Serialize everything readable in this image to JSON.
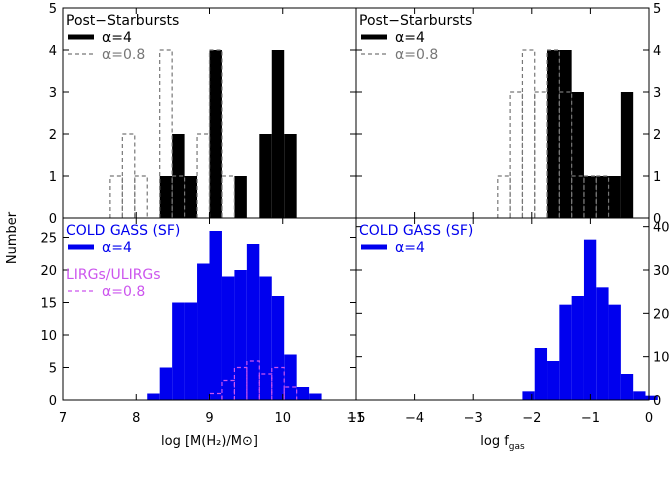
{
  "figure": {
    "y_axis_label": "Number"
  },
  "chart_data": [
    {
      "id": "top-left",
      "type": "bar",
      "xlim": [
        7,
        11
      ],
      "ylim": [
        0,
        5
      ],
      "yticks": [
        0,
        1,
        2,
        3,
        4,
        5
      ],
      "grid": false,
      "legend_title": "Post−Starbursts",
      "legend_title_color": "#000000",
      "legend_placement": "top-left",
      "series": [
        {
          "name": "α=4",
          "style": "solid-fill",
          "color": "#000000",
          "bin_width": 0.17,
          "bins": [
            {
              "x0": 8.32,
              "count": 1
            },
            {
              "x0": 8.49,
              "count": 2
            },
            {
              "x0": 8.66,
              "count": 1
            },
            {
              "x0": 9.0,
              "count": 4
            },
            {
              "x0": 9.34,
              "count": 1
            },
            {
              "x0": 9.68,
              "count": 2
            },
            {
              "x0": 9.85,
              "count": 4
            },
            {
              "x0": 10.02,
              "count": 2
            }
          ]
        },
        {
          "name": "α=0.8",
          "style": "dashed-step",
          "color": "#777777",
          "bin_width": 0.17,
          "bins": [
            {
              "x0": 7.64,
              "count": 1
            },
            {
              "x0": 7.81,
              "count": 2
            },
            {
              "x0": 7.98,
              "count": 1
            },
            {
              "x0": 8.32,
              "count": 4
            },
            {
              "x0": 8.49,
              "count": 1
            },
            {
              "x0": 8.83,
              "count": 2
            },
            {
              "x0": 9.0,
              "count": 4
            },
            {
              "x0": 9.17,
              "count": 1
            }
          ]
        }
      ]
    },
    {
      "id": "top-right",
      "type": "bar",
      "xlim": [
        -5,
        0
      ],
      "ylim": [
        0,
        5
      ],
      "yticks": [
        0,
        1,
        2,
        3,
        4,
        5
      ],
      "grid": false,
      "legend_title": "Post−Starbursts",
      "legend_title_color": "#000000",
      "legend_placement": "top-left",
      "series": [
        {
          "name": "α=4",
          "style": "solid-fill",
          "color": "#000000",
          "bin_width": 0.21,
          "bins": [
            {
              "x0": -1.74,
              "count": 4
            },
            {
              "x0": -1.53,
              "count": 4
            },
            {
              "x0": -1.32,
              "count": 3
            },
            {
              "x0": -1.11,
              "count": 1
            },
            {
              "x0": -0.9,
              "count": 1
            },
            {
              "x0": -0.69,
              "count": 1
            },
            {
              "x0": -0.48,
              "count": 3
            }
          ]
        },
        {
          "name": "α=0.8",
          "style": "dashed-step",
          "color": "#777777",
          "bin_width": 0.21,
          "bins": [
            {
              "x0": -2.58,
              "count": 1
            },
            {
              "x0": -2.37,
              "count": 3
            },
            {
              "x0": -2.16,
              "count": 4
            },
            {
              "x0": -1.95,
              "count": 3
            },
            {
              "x0": -1.74,
              "count": 4
            },
            {
              "x0": -1.53,
              "count": 3
            },
            {
              "x0": -1.32,
              "count": 1
            },
            {
              "x0": -1.11,
              "count": 1
            },
            {
              "x0": -0.9,
              "count": 1
            }
          ]
        }
      ]
    },
    {
      "id": "bottom-left",
      "type": "bar",
      "xlim": [
        7,
        11
      ],
      "ylim": [
        0,
        28
      ],
      "yticks": [
        0,
        5,
        10,
        15,
        20,
        25
      ],
      "xticks": [
        7,
        8,
        9,
        10,
        11
      ],
      "xlabel": "log [M(H₂)/M⊙]",
      "grid": false,
      "legend_title": "COLD GASS (SF)",
      "legend_title_color": "#0000ee",
      "legend_placement": "top-left",
      "extra_legend_title": "LIRGs/ULIRGs",
      "series": [
        {
          "name": "α=4",
          "style": "solid-fill",
          "color": "#0000ee",
          "bin_width": 0.17,
          "bins": [
            {
              "x0": 8.15,
              "count": 1
            },
            {
              "x0": 8.32,
              "count": 5
            },
            {
              "x0": 8.49,
              "count": 15
            },
            {
              "x0": 8.66,
              "count": 15
            },
            {
              "x0": 8.83,
              "count": 21
            },
            {
              "x0": 9.0,
              "count": 26
            },
            {
              "x0": 9.17,
              "count": 19
            },
            {
              "x0": 9.34,
              "count": 20
            },
            {
              "x0": 9.51,
              "count": 24
            },
            {
              "x0": 9.68,
              "count": 19
            },
            {
              "x0": 9.85,
              "count": 16
            },
            {
              "x0": 10.02,
              "count": 7
            },
            {
              "x0": 10.19,
              "count": 2
            },
            {
              "x0": 10.36,
              "count": 1
            }
          ]
        },
        {
          "name": "α=0.8",
          "style": "dashed-step",
          "color": "#cc55ee",
          "bin_width": 0.17,
          "bins": [
            {
              "x0": 9.0,
              "count": 1
            },
            {
              "x0": 9.17,
              "count": 3
            },
            {
              "x0": 9.34,
              "count": 5
            },
            {
              "x0": 9.51,
              "count": 6
            },
            {
              "x0": 9.68,
              "count": 4
            },
            {
              "x0": 9.85,
              "count": 5
            },
            {
              "x0": 10.02,
              "count": 2
            }
          ]
        }
      ]
    },
    {
      "id": "bottom-right",
      "type": "bar",
      "xlim": [
        -5,
        0
      ],
      "ylim": [
        0,
        42
      ],
      "yticks": [
        0,
        10,
        20,
        30,
        40
      ],
      "xticks": [
        -5,
        -4,
        -3,
        -2,
        -1,
        0
      ],
      "xlabel": "log f_gas",
      "grid": false,
      "legend_title": "COLD GASS (SF)",
      "legend_title_color": "#0000ee",
      "legend_placement": "top-left",
      "series": [
        {
          "name": "α=4",
          "style": "solid-fill",
          "color": "#0000ee",
          "bin_width": 0.21,
          "bins": [
            {
              "x0": -2.16,
              "count": 2
            },
            {
              "x0": -1.95,
              "count": 12
            },
            {
              "x0": -1.74,
              "count": 9
            },
            {
              "x0": -1.53,
              "count": 22
            },
            {
              "x0": -1.32,
              "count": 24
            },
            {
              "x0": -1.11,
              "count": 37
            },
            {
              "x0": -0.9,
              "count": 26
            },
            {
              "x0": -0.69,
              "count": 22
            },
            {
              "x0": -0.48,
              "count": 6
            },
            {
              "x0": -0.27,
              "count": 2
            },
            {
              "x0": -0.06,
              "count": 1
            }
          ]
        }
      ]
    }
  ]
}
